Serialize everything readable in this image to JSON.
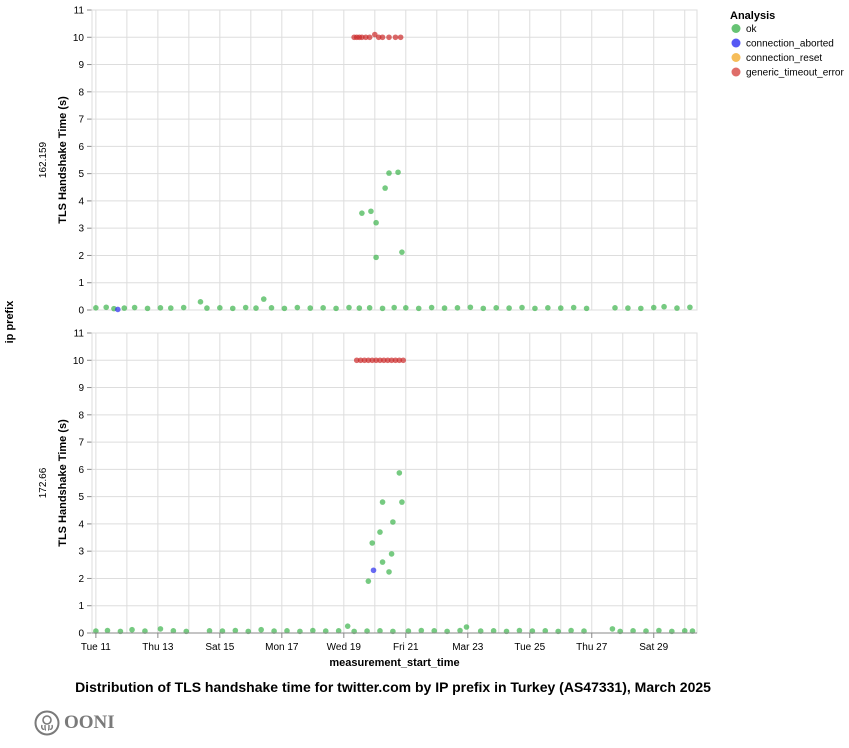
{
  "chart_data": {
    "type": "scatter",
    "title": "Distribution of TLS handshake time for twitter.com by IP prefix in Turkey (AS47331), March 2025",
    "xlabel": "measurement_start_time",
    "ylabel": "TLS Handshake Time (s)",
    "row_label": "ip prefix",
    "xlim": [
      "2025-03-10 21:00",
      "2025-03-30 09:30"
    ],
    "ylim": [
      0,
      11
    ],
    "yticks": [
      0,
      1,
      2,
      3,
      4,
      5,
      6,
      7,
      8,
      9,
      10,
      11
    ],
    "xticks": [
      {
        "date": "2025-03-11",
        "label": "Tue 11"
      },
      {
        "date": "2025-03-13",
        "label": "Thu 13"
      },
      {
        "date": "2025-03-15",
        "label": "Sat 15"
      },
      {
        "date": "2025-03-17",
        "label": "Mon 17"
      },
      {
        "date": "2025-03-19",
        "label": "Wed 19"
      },
      {
        "date": "2025-03-21",
        "label": "Fri 21"
      },
      {
        "date": "2025-03-23",
        "label": "Mar 23"
      },
      {
        "date": "2025-03-25",
        "label": "Tue 25"
      },
      {
        "date": "2025-03-27",
        "label": "Thu 27"
      },
      {
        "date": "2025-03-29",
        "label": "Sat 29"
      }
    ],
    "grid": true,
    "legend": {
      "title": "Analysis",
      "placement": "top-right",
      "entries": [
        {
          "name": "ok",
          "color": "#4cb85c"
        },
        {
          "name": "connection_aborted",
          "color": "#3a3cf2"
        },
        {
          "name": "connection_reset",
          "color": "#f5b23c"
        },
        {
          "name": "generic_timeout_error",
          "color": "#d9534f"
        }
      ]
    },
    "facets": [
      {
        "label": "162.159",
        "points": [
          [
            "2025-03-11 00:00",
            0.08,
            "ok"
          ],
          [
            "2025-03-11 08:00",
            0.1,
            "ok"
          ],
          [
            "2025-03-11 14:00",
            0.05,
            "ok"
          ],
          [
            "2025-03-11 17:00",
            0.02,
            "connection_aborted"
          ],
          [
            "2025-03-11 22:00",
            0.07,
            "ok"
          ],
          [
            "2025-03-12 06:00",
            0.09,
            "ok"
          ],
          [
            "2025-03-12 16:00",
            0.06,
            "ok"
          ],
          [
            "2025-03-13 02:00",
            0.08,
            "ok"
          ],
          [
            "2025-03-13 10:00",
            0.07,
            "ok"
          ],
          [
            "2025-03-13 20:00",
            0.09,
            "ok"
          ],
          [
            "2025-03-14 09:00",
            0.3,
            "ok"
          ],
          [
            "2025-03-14 14:00",
            0.07,
            "ok"
          ],
          [
            "2025-03-15 00:00",
            0.08,
            "ok"
          ],
          [
            "2025-03-15 10:00",
            0.06,
            "ok"
          ],
          [
            "2025-03-15 20:00",
            0.09,
            "ok"
          ],
          [
            "2025-03-16 04:00",
            0.07,
            "ok"
          ],
          [
            "2025-03-16 10:00",
            0.4,
            "ok"
          ],
          [
            "2025-03-16 16:00",
            0.08,
            "ok"
          ],
          [
            "2025-03-17 02:00",
            0.06,
            "ok"
          ],
          [
            "2025-03-17 12:00",
            0.09,
            "ok"
          ],
          [
            "2025-03-17 22:00",
            0.07,
            "ok"
          ],
          [
            "2025-03-18 08:00",
            0.08,
            "ok"
          ],
          [
            "2025-03-18 18:00",
            0.06,
            "ok"
          ],
          [
            "2025-03-19 04:00",
            0.09,
            "ok"
          ],
          [
            "2025-03-19 12:00",
            0.07,
            "ok"
          ],
          [
            "2025-03-19 20:00",
            0.08,
            "ok"
          ],
          [
            "2025-03-20 06:00",
            0.06,
            "ok"
          ],
          [
            "2025-03-20 15:00",
            0.09,
            "ok"
          ],
          [
            "2025-03-21 00:00",
            0.08,
            "ok"
          ],
          [
            "2025-03-21 10:00",
            0.06,
            "ok"
          ],
          [
            "2025-03-21 20:00",
            0.09,
            "ok"
          ],
          [
            "2025-03-22 06:00",
            0.07,
            "ok"
          ],
          [
            "2025-03-22 16:00",
            0.08,
            "ok"
          ],
          [
            "2025-03-23 02:00",
            0.1,
            "ok"
          ],
          [
            "2025-03-23 12:00",
            0.06,
            "ok"
          ],
          [
            "2025-03-23 22:00",
            0.08,
            "ok"
          ],
          [
            "2025-03-24 08:00",
            0.07,
            "ok"
          ],
          [
            "2025-03-24 18:00",
            0.09,
            "ok"
          ],
          [
            "2025-03-25 04:00",
            0.06,
            "ok"
          ],
          [
            "2025-03-25 14:00",
            0.08,
            "ok"
          ],
          [
            "2025-03-26 00:00",
            0.07,
            "ok"
          ],
          [
            "2025-03-26 10:00",
            0.09,
            "ok"
          ],
          [
            "2025-03-26 20:00",
            0.06,
            "ok"
          ],
          [
            "2025-03-27 18:00",
            0.08,
            "ok"
          ],
          [
            "2025-03-28 04:00",
            0.07,
            "ok"
          ],
          [
            "2025-03-28 14:00",
            0.06,
            "ok"
          ],
          [
            "2025-03-29 00:00",
            0.09,
            "ok"
          ],
          [
            "2025-03-29 08:00",
            0.12,
            "ok"
          ],
          [
            "2025-03-29 18:00",
            0.07,
            "ok"
          ],
          [
            "2025-03-30 04:00",
            0.1,
            "ok"
          ],
          [
            "2025-03-19 14:00",
            3.55,
            "ok"
          ],
          [
            "2025-03-19 21:00",
            3.62,
            "ok"
          ],
          [
            "2025-03-20 01:00",
            3.2,
            "ok"
          ],
          [
            "2025-03-20 01:00",
            1.93,
            "ok"
          ],
          [
            "2025-03-20 08:00",
            4.47,
            "ok"
          ],
          [
            "2025-03-20 11:00",
            5.02,
            "ok"
          ],
          [
            "2025-03-20 18:00",
            5.05,
            "ok"
          ],
          [
            "2025-03-20 21:00",
            2.12,
            "ok"
          ],
          [
            "2025-03-19 08:00",
            10,
            "generic_timeout_error"
          ],
          [
            "2025-03-19 10:00",
            10,
            "generic_timeout_error"
          ],
          [
            "2025-03-19 12:00",
            10,
            "generic_timeout_error"
          ],
          [
            "2025-03-19 14:00",
            10,
            "generic_timeout_error"
          ],
          [
            "2025-03-19 17:00",
            10,
            "generic_timeout_error"
          ],
          [
            "2025-03-19 20:00",
            10,
            "generic_timeout_error"
          ],
          [
            "2025-03-20 00:00",
            10.1,
            "generic_timeout_error"
          ],
          [
            "2025-03-20 03:00",
            10,
            "generic_timeout_error"
          ],
          [
            "2025-03-20 06:00",
            10,
            "generic_timeout_error"
          ],
          [
            "2025-03-20 11:00",
            10,
            "generic_timeout_error"
          ],
          [
            "2025-03-20 16:00",
            10,
            "generic_timeout_error"
          ],
          [
            "2025-03-20 20:00",
            10,
            "generic_timeout_error"
          ]
        ]
      },
      {
        "label": "172.66",
        "points": [
          [
            "2025-03-11 00:00",
            0.07,
            "ok"
          ],
          [
            "2025-03-11 09:00",
            0.09,
            "ok"
          ],
          [
            "2025-03-11 19:00",
            0.06,
            "ok"
          ],
          [
            "2025-03-12 04:00",
            0.12,
            "ok"
          ],
          [
            "2025-03-12 14:00",
            0.07,
            "ok"
          ],
          [
            "2025-03-13 02:00",
            0.15,
            "ok"
          ],
          [
            "2025-03-13 12:00",
            0.08,
            "ok"
          ],
          [
            "2025-03-13 22:00",
            0.06,
            "ok"
          ],
          [
            "2025-03-14 16:00",
            0.08,
            "ok"
          ],
          [
            "2025-03-15 02:00",
            0.07,
            "ok"
          ],
          [
            "2025-03-15 12:00",
            0.09,
            "ok"
          ],
          [
            "2025-03-15 22:00",
            0.06,
            "ok"
          ],
          [
            "2025-03-16 08:00",
            0.12,
            "ok"
          ],
          [
            "2025-03-16 18:00",
            0.07,
            "ok"
          ],
          [
            "2025-03-17 04:00",
            0.08,
            "ok"
          ],
          [
            "2025-03-17 14:00",
            0.06,
            "ok"
          ],
          [
            "2025-03-18 00:00",
            0.09,
            "ok"
          ],
          [
            "2025-03-18 10:00",
            0.07,
            "ok"
          ],
          [
            "2025-03-18 20:00",
            0.08,
            "ok"
          ],
          [
            "2025-03-19 03:00",
            0.25,
            "ok"
          ],
          [
            "2025-03-19 08:00",
            0.06,
            "ok"
          ],
          [
            "2025-03-19 18:00",
            0.07,
            "ok"
          ],
          [
            "2025-03-20 04:00",
            0.08,
            "ok"
          ],
          [
            "2025-03-20 14:00",
            0.06,
            "ok"
          ],
          [
            "2025-03-21 02:00",
            0.07,
            "ok"
          ],
          [
            "2025-03-21 12:00",
            0.09,
            "ok"
          ],
          [
            "2025-03-21 22:00",
            0.08,
            "ok"
          ],
          [
            "2025-03-22 08:00",
            0.06,
            "ok"
          ],
          [
            "2025-03-22 18:00",
            0.09,
            "ok"
          ],
          [
            "2025-03-22 23:00",
            0.22,
            "ok"
          ],
          [
            "2025-03-23 10:00",
            0.07,
            "ok"
          ],
          [
            "2025-03-23 20:00",
            0.08,
            "ok"
          ],
          [
            "2025-03-24 06:00",
            0.06,
            "ok"
          ],
          [
            "2025-03-24 16:00",
            0.09,
            "ok"
          ],
          [
            "2025-03-25 02:00",
            0.07,
            "ok"
          ],
          [
            "2025-03-25 12:00",
            0.08,
            "ok"
          ],
          [
            "2025-03-25 22:00",
            0.06,
            "ok"
          ],
          [
            "2025-03-26 08:00",
            0.09,
            "ok"
          ],
          [
            "2025-03-26 18:00",
            0.07,
            "ok"
          ],
          [
            "2025-03-27 16:00",
            0.15,
            "ok"
          ],
          [
            "2025-03-27 22:00",
            0.06,
            "ok"
          ],
          [
            "2025-03-28 08:00",
            0.08,
            "ok"
          ],
          [
            "2025-03-28 18:00",
            0.07,
            "ok"
          ],
          [
            "2025-03-29 04:00",
            0.09,
            "ok"
          ],
          [
            "2025-03-29 14:00",
            0.06,
            "ok"
          ],
          [
            "2025-03-30 00:00",
            0.08,
            "ok"
          ],
          [
            "2025-03-30 06:00",
            0.07,
            "ok"
          ],
          [
            "2025-03-20 19:00",
            5.87,
            "ok"
          ],
          [
            "2025-03-20 06:00",
            4.8,
            "ok"
          ],
          [
            "2025-03-20 21:00",
            4.8,
            "ok"
          ],
          [
            "2025-03-20 14:00",
            4.07,
            "ok"
          ],
          [
            "2025-03-20 04:00",
            3.7,
            "ok"
          ],
          [
            "2025-03-19 22:00",
            3.3,
            "ok"
          ],
          [
            "2025-03-20 13:00",
            2.9,
            "ok"
          ],
          [
            "2025-03-20 06:00",
            2.6,
            "ok"
          ],
          [
            "2025-03-19 23:00",
            2.3,
            "connection_aborted"
          ],
          [
            "2025-03-20 11:00",
            2.24,
            "ok"
          ],
          [
            "2025-03-19 19:00",
            1.9,
            "ok"
          ],
          [
            "2025-03-19 10:00",
            10,
            "generic_timeout_error"
          ],
          [
            "2025-03-19 13:00",
            10,
            "generic_timeout_error"
          ],
          [
            "2025-03-19 16:00",
            10,
            "generic_timeout_error"
          ],
          [
            "2025-03-19 19:00",
            10,
            "generic_timeout_error"
          ],
          [
            "2025-03-19 22:00",
            10,
            "generic_timeout_error"
          ],
          [
            "2025-03-20 01:00",
            10,
            "generic_timeout_error"
          ],
          [
            "2025-03-20 04:00",
            10,
            "generic_timeout_error"
          ],
          [
            "2025-03-20 07:00",
            10,
            "generic_timeout_error"
          ],
          [
            "2025-03-20 10:00",
            10,
            "generic_timeout_error"
          ],
          [
            "2025-03-20 13:00",
            10,
            "generic_timeout_error"
          ],
          [
            "2025-03-20 16:00",
            10,
            "generic_timeout_error"
          ],
          [
            "2025-03-20 19:00",
            10,
            "generic_timeout_error"
          ],
          [
            "2025-03-20 22:00",
            10,
            "generic_timeout_error"
          ]
        ]
      }
    ]
  },
  "footer": {
    "logo_text": "OONI"
  }
}
